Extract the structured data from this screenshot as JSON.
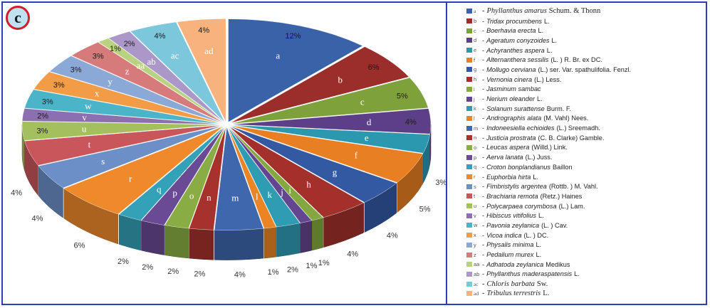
{
  "panel_label": "c",
  "chart_data": {
    "type": "pie",
    "style": "3d-exploded",
    "slices": [
      {
        "label": "a",
        "value": 12,
        "pct": "12%",
        "color": "#3a62a9",
        "species": "Phyllanthus amarus",
        "authority": "Schum. & Thonn",
        "serif": true
      },
      {
        "label": "b",
        "value": 6,
        "pct": "6%",
        "color": "#9b2d2a",
        "species": "Tridax procumbens",
        "authority": "L."
      },
      {
        "label": "c",
        "value": 5,
        "pct": "5%",
        "color": "#7fa13b",
        "species": "Boerhavia erecta",
        "authority": "L."
      },
      {
        "label": "d",
        "value": 4,
        "pct": "4%",
        "color": "#5d3f87",
        "species": "Ageratum conyzoides",
        "authority": "L."
      },
      {
        "label": "e",
        "value": 3,
        "pct": "3%",
        "color": "#2b98b0",
        "species": "Achyranthes aspera",
        "authority": "L."
      },
      {
        "label": "f",
        "value": 5,
        "pct": "5%",
        "color": "#e87f22",
        "species": "Alternanthera sessilis",
        "authority": "(L. ) R. Br. ex DC."
      },
      {
        "label": "g",
        "value": 4,
        "pct": "4%",
        "color": "#3459a3",
        "species": "Mollugo cerviana",
        "authority": "(L.) ser. Var. spathulifolia. Fenzl."
      },
      {
        "label": "h",
        "value": 4,
        "pct": "4%",
        "color": "#a3302b",
        "species": "Vernonia cinera",
        "authority": "(L.) Less."
      },
      {
        "label": "i",
        "value": 1,
        "pct": "1%",
        "color": "#84a83f",
        "species": "Jasminum sambac",
        "authority": ""
      },
      {
        "label": "j",
        "value": 1,
        "pct": "1%",
        "color": "#644590",
        "species": "Nerium oleander",
        "authority": "L."
      },
      {
        "label": "k",
        "value": 2,
        "pct": "2%",
        "color": "#2f9cb3",
        "species": "Solanum surattense",
        "authority": "Burm. F."
      },
      {
        "label": "l",
        "value": 1,
        "pct": "1%",
        "color": "#ea8526",
        "species": "Andrographis alata",
        "authority": "(M. Vahl) Nees."
      },
      {
        "label": "m",
        "value": 4,
        "pct": "4%",
        "color": "#3f67ae",
        "species": "Indoneesiella echioides",
        "authority": "(L.) Sreemadh."
      },
      {
        "label": "n",
        "value": 2,
        "pct": "2%",
        "color": "#a5322d",
        "species": "Justicia prostrata",
        "authority": "(C. B. Clarke) Gamble."
      },
      {
        "label": "o",
        "value": 2,
        "pct": "2%",
        "color": "#89ad44",
        "species": "Leucas aspera",
        "authority": "(Willd.) Link."
      },
      {
        "label": "p",
        "value": 2,
        "pct": "2%",
        "color": "#6a4a95",
        "species": "Aerva lanata",
        "authority": "(L.) Juss."
      },
      {
        "label": "q",
        "value": 2,
        "pct": "2%",
        "color": "#33a1b8",
        "species": "Croton bonplandianus",
        "authority": "Baillon"
      },
      {
        "label": "r",
        "value": 6,
        "pct": "6%",
        "color": "#ef8a2c",
        "species": "Euphorbia hirta",
        "authority": "L."
      },
      {
        "label": "s",
        "value": 4,
        "pct": "4%",
        "color": "#6c8fc8",
        "species": "Fimbristylis argentea",
        "authority": "(Rottb. ) M. Vahl."
      },
      {
        "label": "t",
        "value": 4,
        "pct": "4%",
        "color": "#c8565a",
        "species": "Brachiaria remota",
        "authority": "(Retz.) Haines"
      },
      {
        "label": "u",
        "value": 3,
        "pct": "3%",
        "color": "#a4c05e",
        "species": "Polycarpaea corymbosa",
        "authority": "(L.) Lam."
      },
      {
        "label": "v",
        "value": 2,
        "pct": "2%",
        "color": "#8c6fb0",
        "species": "Hibiscus vitifolius",
        "authority": "L."
      },
      {
        "label": "w",
        "value": 3,
        "pct": "3%",
        "color": "#4cb4c9",
        "species": "Pavonia zeylanica",
        "authority": "(L. ) Cav."
      },
      {
        "label": "x",
        "value": 3,
        "pct": "3%",
        "color": "#f39c48",
        "species": "Vicoa indica",
        "authority": "(L. ) DC."
      },
      {
        "label": "y",
        "value": 3,
        "pct": "3%",
        "color": "#8ba9d6",
        "species": "Physalis minima",
        "authority": "L."
      },
      {
        "label": "z",
        "value": 3,
        "pct": "3%",
        "color": "#d77a7b",
        "species": "Pedalium murex",
        "authority": "L."
      },
      {
        "label": "aa",
        "value": 1,
        "pct": "1%",
        "color": "#b9d27f",
        "species": "Adhatoda zeylanica",
        "authority": "Medikus"
      },
      {
        "label": "ab",
        "value": 2,
        "pct": "2%",
        "color": "#ab98c8",
        "species": "Phyllanthus maderaspatensis",
        "authority": "L."
      },
      {
        "label": "ac",
        "value": 4,
        "pct": "4%",
        "color": "#7dc7dc",
        "species": "Chloris barbata",
        "authority": "Sw.",
        "serif": true
      },
      {
        "label": "ad",
        "value": 4,
        "pct": "4%",
        "color": "#f7b27e",
        "species": "Tribulus terrestris",
        "authority": "L.",
        "serif": true
      }
    ]
  }
}
